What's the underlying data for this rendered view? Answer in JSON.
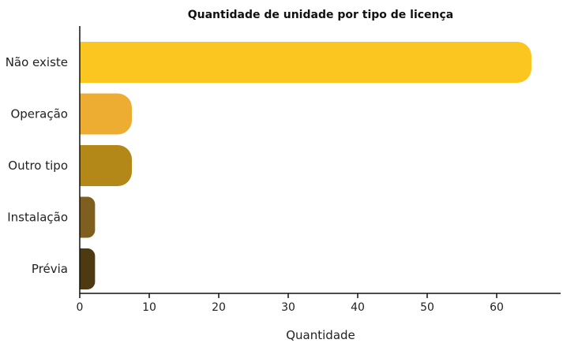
{
  "chart_data": {
    "type": "bar",
    "orientation": "horizontal",
    "title": "Quantidade de unidade por tipo de licença",
    "xlabel": "Quantidade",
    "ylabel": "",
    "categories": [
      "Não existe",
      "Operação",
      "Outro tipo",
      "Instalação",
      "Prévia"
    ],
    "values": [
      65,
      7.5,
      7.5,
      2.2,
      2.2
    ],
    "colors": [
      "#FCC620",
      "#EDAD32",
      "#B38718",
      "#7E5F1F",
      "#4D3A12"
    ],
    "xlim": [
      0,
      68
    ],
    "xticks": [
      0,
      10,
      20,
      30,
      40,
      50,
      60
    ],
    "grid": false,
    "legend": "none"
  }
}
